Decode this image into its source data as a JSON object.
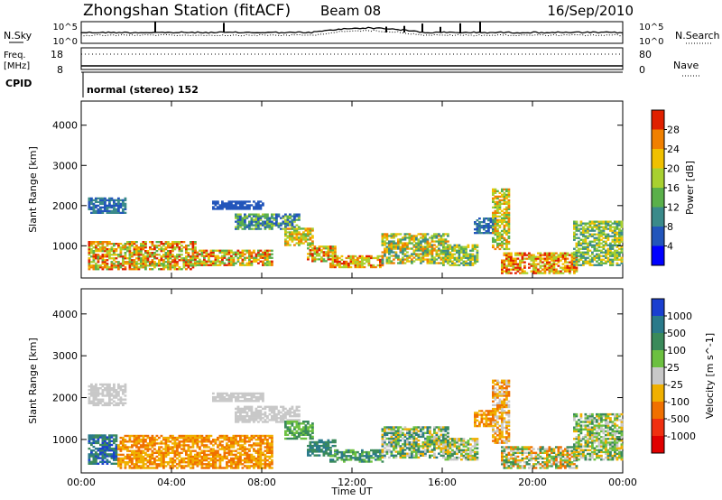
{
  "header": {
    "station": "Zhongshan Station (fitACF)",
    "beam": "Beam 08",
    "date": "16/Sep/2010"
  },
  "top_panel": {
    "nsky_label": "N.Sky",
    "nsearch_label": "N.Search",
    "freq_label": "Freq.",
    "freq_unit": "[MHz]",
    "nave_label": "Nave",
    "cpid_label": "CPID",
    "cpid_text": "normal (stereo) 152",
    "noise_ticks_left": [
      "10^5",
      "10^0"
    ],
    "noise_ticks_right": [
      "10^5",
      "10^0"
    ],
    "freq_ticks": [
      "18",
      "8"
    ],
    "nave_ticks": [
      "80",
      "0"
    ]
  },
  "chart_data": [
    {
      "type": "heatmap",
      "name": "power",
      "ylabel": "Slant Range [km]",
      "ylim": [
        200,
        4600
      ],
      "yticks": [
        "1000",
        "2000",
        "3000",
        "4000"
      ],
      "xlim": [
        0,
        24
      ],
      "xticks": [
        "00:00",
        "04:00",
        "08:00",
        "12:00",
        "16:00",
        "20:00",
        "00:00"
      ],
      "colorbar": {
        "label": "Power [dB]",
        "ticks": [
          "4",
          "8",
          "12",
          "16",
          "20",
          "24",
          "28"
        ],
        "colors": [
          "#0000ff",
          "#2255bb",
          "#3a8a8a",
          "#5ab04a",
          "#a8d030",
          "#f0c000",
          "#f08000",
          "#e02000"
        ]
      },
      "regions": [
        {
          "t": [
            0.3,
            5.0
          ],
          "r": [
            400,
            1100
          ],
          "c": [
            3,
            7
          ]
        },
        {
          "t": [
            5.0,
            8.4
          ],
          "r": [
            500,
            900
          ],
          "c": [
            3,
            7
          ]
        },
        {
          "t": [
            0.3,
            2.0
          ],
          "r": [
            1800,
            2200
          ],
          "c": [
            1,
            2
          ]
        },
        {
          "t": [
            5.8,
            8.0
          ],
          "r": [
            1900,
            2100
          ],
          "c": [
            1,
            1
          ]
        },
        {
          "t": [
            6.8,
            9.6
          ],
          "r": [
            1400,
            1800
          ],
          "c": [
            1,
            4
          ]
        },
        {
          "t": [
            9.0,
            10.2
          ],
          "r": [
            1000,
            1450
          ],
          "c": [
            3,
            6
          ]
        },
        {
          "t": [
            10.0,
            11.2
          ],
          "r": [
            600,
            1000
          ],
          "c": [
            3,
            7
          ]
        },
        {
          "t": [
            11.0,
            13.3
          ],
          "r": [
            450,
            750
          ],
          "c": [
            4,
            7
          ]
        },
        {
          "t": [
            13.3,
            16.2
          ],
          "r": [
            550,
            1300
          ],
          "c": [
            2,
            6
          ]
        },
        {
          "t": [
            16.0,
            17.6
          ],
          "r": [
            500,
            1000
          ],
          "c": [
            2,
            5
          ]
        },
        {
          "t": [
            17.4,
            18.4
          ],
          "r": [
            1300,
            1700
          ],
          "c": [
            1,
            2
          ]
        },
        {
          "t": [
            18.2,
            19.0
          ],
          "r": [
            900,
            2400
          ],
          "c": [
            3,
            6
          ]
        },
        {
          "t": [
            18.6,
            22.0
          ],
          "r": [
            300,
            800
          ],
          "c": [
            4,
            7
          ]
        },
        {
          "t": [
            21.8,
            24.0
          ],
          "r": [
            500,
            1600
          ],
          "c": [
            2,
            5
          ]
        }
      ]
    },
    {
      "type": "heatmap",
      "name": "velocity",
      "ylabel": "Slant Range [km]",
      "ylim": [
        200,
        4600
      ],
      "yticks": [
        "1000",
        "2000",
        "3000",
        "4000"
      ],
      "xlim": [
        0,
        24
      ],
      "xticks": [
        "00:00",
        "04:00",
        "08:00",
        "12:00",
        "16:00",
        "20:00",
        "00:00"
      ],
      "xlabel": "Time UT",
      "colorbar": {
        "label": "Velocity [m s^-1]",
        "ticks": [
          "1000",
          "500",
          "100",
          "25",
          "-25",
          "-100",
          "-500",
          "-1000"
        ],
        "colors": [
          "#1a3fd0",
          "#2a7a8a",
          "#3a8a5a",
          "#6cc040",
          "#c8c8c8",
          "#f0b000",
          "#f07000",
          "#f03010",
          "#e00000"
        ]
      },
      "regions": [
        {
          "t": [
            0.3,
            1.6
          ],
          "r": [
            400,
            1100
          ],
          "c": [
            0,
            2
          ]
        },
        {
          "t": [
            1.6,
            8.4
          ],
          "r": [
            300,
            1100
          ],
          "c": [
            5,
            6
          ]
        },
        {
          "t": [
            0.3,
            2.0
          ],
          "r": [
            1800,
            2300
          ],
          "c": [
            4,
            4
          ]
        },
        {
          "t": [
            5.8,
            8.0
          ],
          "r": [
            1900,
            2100
          ],
          "c": [
            4,
            4
          ]
        },
        {
          "t": [
            6.8,
            9.6
          ],
          "r": [
            1400,
            1800
          ],
          "c": [
            4,
            4
          ]
        },
        {
          "t": [
            9.0,
            10.2
          ],
          "r": [
            1000,
            1450
          ],
          "c": [
            2,
            3
          ]
        },
        {
          "t": [
            10.0,
            11.2
          ],
          "r": [
            600,
            1000
          ],
          "c": [
            1,
            2
          ]
        },
        {
          "t": [
            11.0,
            13.3
          ],
          "r": [
            450,
            750
          ],
          "c": [
            1,
            3
          ]
        },
        {
          "t": [
            13.3,
            16.2
          ],
          "r": [
            550,
            1300
          ],
          "c": [
            1,
            5
          ]
        },
        {
          "t": [
            16.0,
            17.6
          ],
          "r": [
            500,
            1000
          ],
          "c": [
            2,
            5
          ]
        },
        {
          "t": [
            17.4,
            18.4
          ],
          "r": [
            1300,
            1700
          ],
          "c": [
            5,
            6
          ]
        },
        {
          "t": [
            18.2,
            19.0
          ],
          "r": [
            900,
            2400
          ],
          "c": [
            4,
            6
          ]
        },
        {
          "t": [
            18.6,
            22.0
          ],
          "r": [
            300,
            800
          ],
          "c": [
            2,
            6
          ]
        },
        {
          "t": [
            21.8,
            24.0
          ],
          "r": [
            500,
            1600
          ],
          "c": [
            2,
            5
          ]
        }
      ]
    }
  ]
}
